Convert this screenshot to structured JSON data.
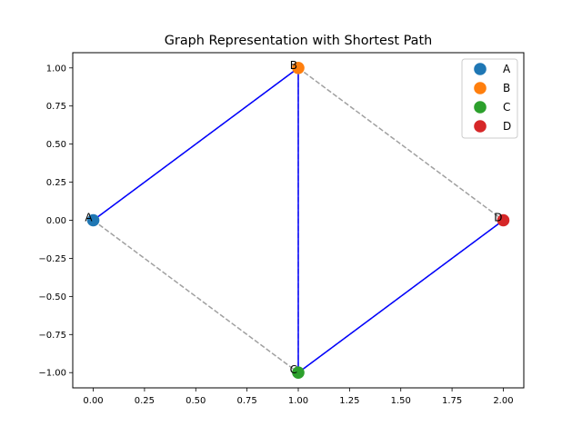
{
  "chart_data": {
    "type": "scatter",
    "title": "Graph Representation with Shortest Path",
    "xlabel": "",
    "ylabel": "",
    "xlim": [
      -0.1,
      2.1
    ],
    "ylim": [
      -1.1,
      1.1
    ],
    "x_ticks": [
      0.0,
      0.25,
      0.5,
      0.75,
      1.0,
      1.25,
      1.5,
      1.75,
      2.0
    ],
    "x_tick_labels": [
      "0.00",
      "0.25",
      "0.50",
      "0.75",
      "1.00",
      "1.25",
      "1.50",
      "1.75",
      "2.00"
    ],
    "y_ticks": [
      -1.0,
      -0.75,
      -0.5,
      -0.25,
      0.0,
      0.25,
      0.5,
      0.75,
      1.0
    ],
    "y_tick_labels": [
      "−1.00",
      "−0.75",
      "−0.50",
      "−0.25",
      "0.00",
      "0.25",
      "0.50",
      "0.75",
      "1.00"
    ],
    "grid": false,
    "legend_position": "top-right",
    "nodes": [
      {
        "name": "A",
        "x": 0,
        "y": 0,
        "color": "#1f77b4"
      },
      {
        "name": "B",
        "x": 1,
        "y": 1,
        "color": "#ff7f0e"
      },
      {
        "name": "C",
        "x": 1,
        "y": -1,
        "color": "#2ca02c"
      },
      {
        "name": "D",
        "x": 2,
        "y": 0,
        "color": "#d62728"
      }
    ],
    "edges": [
      {
        "from": "A",
        "to": "B"
      },
      {
        "from": "A",
        "to": "C"
      },
      {
        "from": "B",
        "to": "C"
      },
      {
        "from": "B",
        "to": "D"
      },
      {
        "from": "C",
        "to": "D"
      }
    ],
    "shortest_path_edges": [
      {
        "from": "A",
        "to": "B"
      },
      {
        "from": "B",
        "to": "C"
      },
      {
        "from": "C",
        "to": "D"
      }
    ],
    "edge_color": "#a0a0a0",
    "path_color": "#0000ff"
  }
}
